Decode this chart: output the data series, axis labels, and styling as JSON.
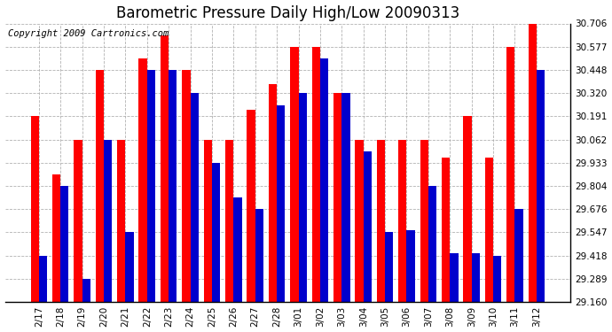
{
  "title": "Barometric Pressure Daily High/Low 20090313",
  "copyright": "Copyright 2009 Cartronics.com",
  "dates": [
    "2/17",
    "2/18",
    "2/19",
    "2/20",
    "2/21",
    "2/22",
    "2/23",
    "2/24",
    "2/25",
    "2/26",
    "2/27",
    "2/28",
    "3/01",
    "3/02",
    "3/03",
    "3/04",
    "3/05",
    "3/06",
    "3/07",
    "3/08",
    "3/09",
    "3/10",
    "3/11",
    "3/12"
  ],
  "highs": [
    30.191,
    29.87,
    30.062,
    30.448,
    30.062,
    30.51,
    30.64,
    30.448,
    30.062,
    30.062,
    30.227,
    30.37,
    30.577,
    30.577,
    30.32,
    30.062,
    30.062,
    30.062,
    30.062,
    29.96,
    30.191,
    29.96,
    30.577,
    30.706
  ],
  "lows": [
    29.418,
    29.804,
    29.289,
    30.062,
    29.547,
    30.448,
    30.448,
    30.32,
    29.933,
    29.74,
    29.676,
    30.25,
    30.32,
    30.512,
    30.32,
    29.997,
    29.547,
    29.56,
    29.804,
    29.432,
    29.432,
    29.418,
    29.676,
    30.448
  ],
  "high_color": "#ff0000",
  "low_color": "#0000cc",
  "background_color": "#ffffff",
  "plot_bg_color": "#ffffff",
  "grid_color": "#aaaaaa",
  "ylim_min": 29.16,
  "ylim_max": 30.706,
  "yticks": [
    29.16,
    29.289,
    29.418,
    29.547,
    29.676,
    29.804,
    29.933,
    30.062,
    30.191,
    30.32,
    30.448,
    30.577,
    30.706
  ],
  "bar_width": 0.38,
  "title_fontsize": 12,
  "tick_fontsize": 7.5,
  "copyright_fontsize": 7.5
}
